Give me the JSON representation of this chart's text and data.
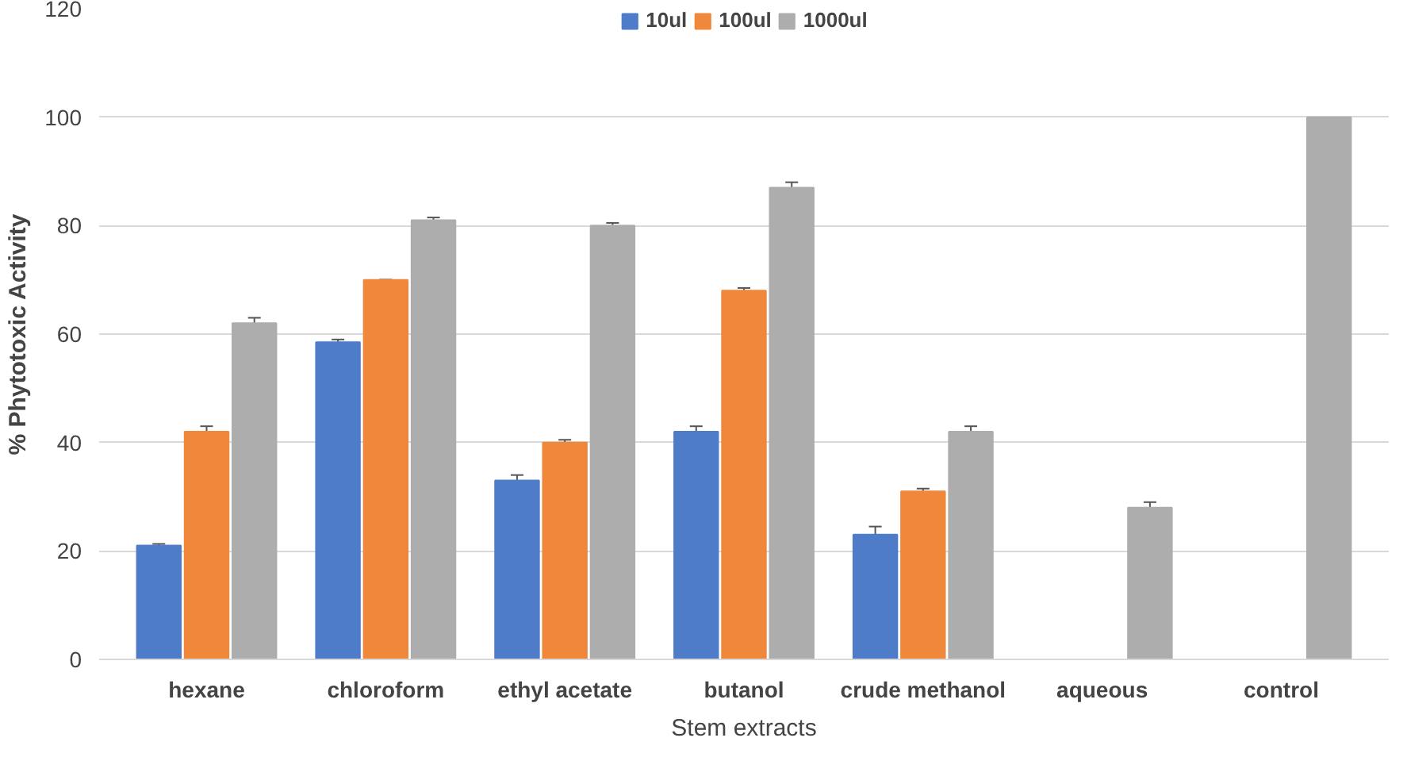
{
  "chart_data": {
    "type": "bar",
    "xlabel": "Stem extracts",
    "ylabel": "% Phytotoxic Activity",
    "categories": [
      "hexane",
      "chloroform",
      "ethyl acetate",
      "butanol",
      "crude methanol",
      "aqueous",
      "control"
    ],
    "series": [
      {
        "name": "10ul",
        "color": "#4e7cc9",
        "values": [
          21,
          58.5,
          33,
          42,
          23,
          null,
          null
        ],
        "errors": [
          0.3,
          0.5,
          1,
          1,
          1.5,
          null,
          null
        ]
      },
      {
        "name": "100ul",
        "color": "#ef883b",
        "values": [
          42,
          70,
          40,
          68,
          31,
          null,
          null
        ],
        "errors": [
          1,
          0,
          0.5,
          0.5,
          0.5,
          null,
          null
        ]
      },
      {
        "name": "1000ul",
        "color": "#adadad",
        "values": [
          62,
          81,
          80,
          87,
          42,
          28,
          100
        ],
        "errors": [
          1,
          0.5,
          0.5,
          1,
          1,
          1,
          null
        ]
      }
    ],
    "ylim": [
      0,
      120
    ],
    "yticks": [
      0,
      20,
      40,
      60,
      80,
      100,
      120
    ],
    "grid": "y",
    "legend": "top"
  }
}
